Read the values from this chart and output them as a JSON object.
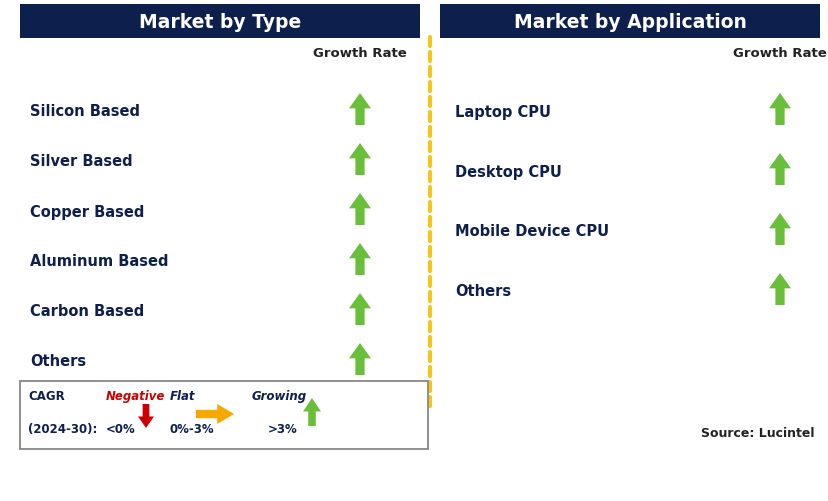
{
  "title_left": "Market by Type",
  "title_right": "Market by Application",
  "title_bg_color": "#0d1f4c",
  "title_text_color": "#ffffff",
  "growth_rate_label": "Growth Rate",
  "left_items": [
    "Silicon Based",
    "Silver Based",
    "Copper Based",
    "Aluminum Based",
    "Carbon Based",
    "Others"
  ],
  "right_items": [
    "Laptop CPU",
    "Desktop CPU",
    "Mobile Device CPU",
    "Others"
  ],
  "arrow_color_green": "#6abf3a",
  "item_text_color": "#0d1f4c",
  "dashed_line_color": "#f5c518",
  "source_text": "Source: Lucintel",
  "legend_box_bg": "#ffffff",
  "legend_border_color": "#888888",
  "cagr_text1": "CAGR",
  "cagr_text2": "(2024-30):",
  "neg_label": "Negative",
  "neg_sublabel": "<0%",
  "flat_label": "Flat",
  "flat_sublabel": "0%-3%",
  "grow_label": "Growing",
  "grow_sublabel": ">3%",
  "neg_arrow_color": "#cc0000",
  "flat_arrow_color": "#f5a800",
  "grow_arrow_color": "#6abf3a",
  "background_color": "#ffffff",
  "fig_w": 8.29,
  "fig_h": 5.02,
  "dpi": 100
}
